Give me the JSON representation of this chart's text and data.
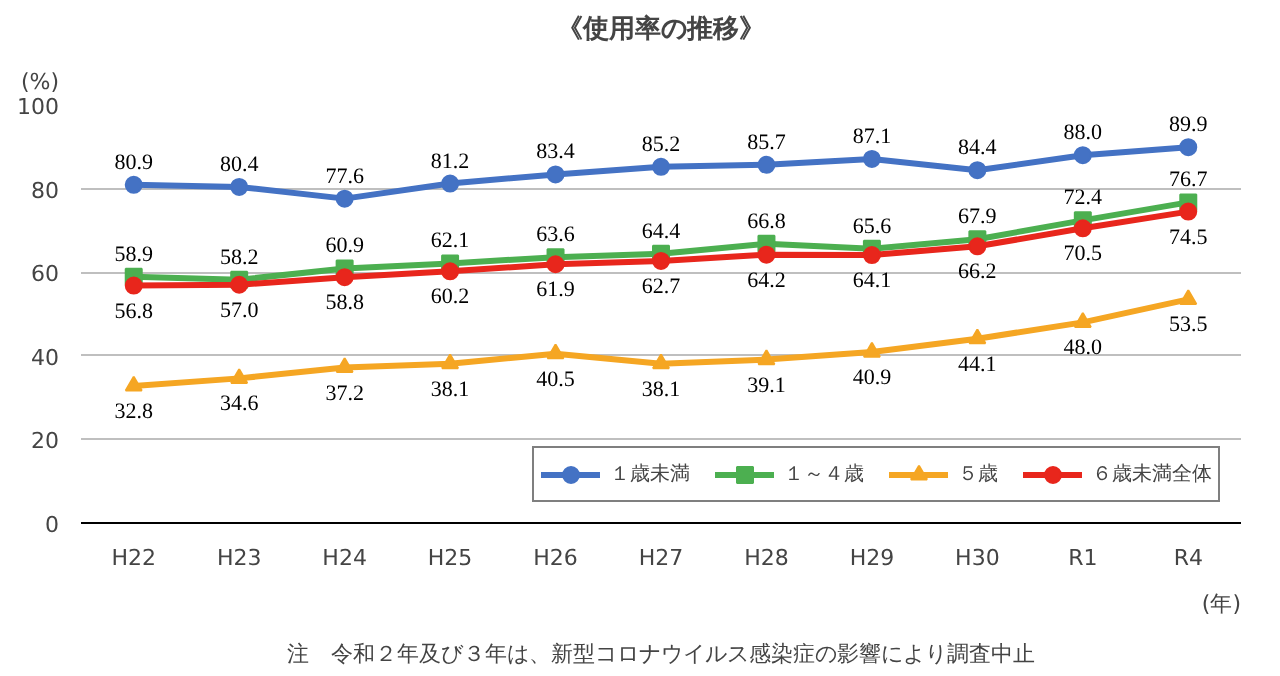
{
  "chart_data": {
    "type": "line",
    "title": "《使用率の推移》",
    "ylabel": "(%)",
    "xlabel": "(年)",
    "categories": [
      "H22",
      "H23",
      "H24",
      "H25",
      "H26",
      "H27",
      "H28",
      "H29",
      "H30",
      "R1",
      "R4"
    ],
    "ylim": [
      0,
      100
    ],
    "yticks": [
      0,
      20,
      40,
      60,
      80,
      100
    ],
    "grid": "y",
    "legend": "bottom right",
    "annotations": [
      "注　令和２年及び３年は、新型コロナウイルス感染症の影響により調査中止"
    ],
    "series": [
      {
        "name": "１歳未満",
        "color": "#4472c4",
        "marker": "circle",
        "values": [
          80.9,
          80.4,
          77.6,
          81.2,
          83.4,
          85.2,
          85.7,
          87.1,
          84.4,
          88.0,
          89.9
        ],
        "value_labels": [
          "80.9",
          "80.4",
          "77.6",
          "81.2",
          "83.4",
          "85.2",
          "85.7",
          "87.1",
          "84.4",
          "88.0",
          "89.9"
        ]
      },
      {
        "name": "１～４歳",
        "color": "#4caf50",
        "marker": "square",
        "values": [
          58.9,
          58.2,
          60.9,
          62.1,
          63.6,
          64.4,
          66.8,
          65.6,
          67.9,
          72.4,
          76.7
        ],
        "value_labels": [
          "58.9",
          "58.2",
          "60.9",
          "62.1",
          "63.6",
          "64.4",
          "66.8",
          "65.6",
          "67.9",
          "72.4",
          "76.7"
        ]
      },
      {
        "name": "５歳",
        "color": "#f5a623",
        "marker": "triangle",
        "values": [
          32.8,
          34.6,
          37.2,
          38.1,
          40.5,
          38.1,
          39.1,
          40.9,
          44.1,
          48.0,
          53.5
        ],
        "value_labels": [
          "32.8",
          "34.6",
          "37.2",
          "38.1",
          "40.5",
          "38.1",
          "39.1",
          "40.9",
          "44.1",
          "48.0",
          "53.5"
        ]
      },
      {
        "name": "６歳未満全体",
        "color": "#e8261c",
        "marker": "circle",
        "values": [
          56.8,
          57.0,
          58.8,
          60.2,
          61.9,
          62.7,
          64.2,
          64.1,
          66.2,
          70.5,
          74.5
        ],
        "value_labels": [
          "56.8",
          "57.0",
          "58.8",
          "60.2",
          "61.9",
          "62.7",
          "64.2",
          "64.1",
          "66.2",
          "70.5",
          "74.5"
        ]
      }
    ]
  }
}
